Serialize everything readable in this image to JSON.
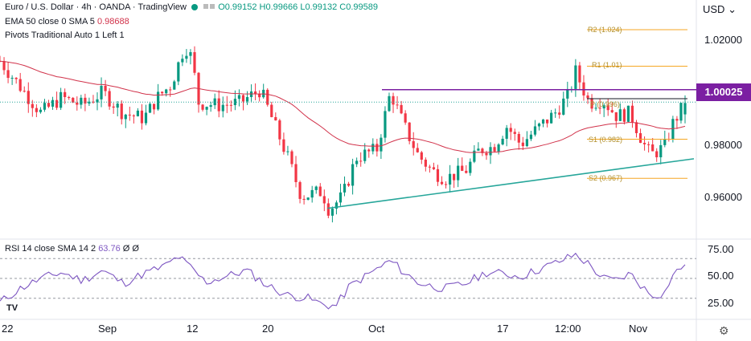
{
  "header": {
    "symbol": "Euro / U.S. Dollar · 4h · OANDA · TradingView",
    "ohlc": "O0.99152 H0.99666 L0.99132 C0.99589",
    "ema_label": "EMA 50 close 0 SMA 5",
    "ema_value": "0.98688",
    "pivots_label": "Pivots Traditional Auto 1 Left 1",
    "currency": "USD",
    "currency_icon": "chevron-down-icon"
  },
  "price_axis": {
    "ticks": [
      "1.02000",
      "0.98000",
      "0.96000"
    ],
    "last_price": "1.00025"
  },
  "rsi": {
    "label": "RSI 14 close SMA 14 2",
    "value": "63.76",
    "ticks": [
      "75.00",
      "50.00",
      "25.00"
    ]
  },
  "time_axis": [
    "22",
    "Sep",
    "12",
    "20",
    "Oct",
    "17",
    "12:00",
    "Nov"
  ],
  "pivots": {
    "R2": "R2 (1.024)",
    "R1": "R1 (1.01)",
    "P": "P (0.996)",
    "S1": "S1 (0.982)",
    "S2": "S2 (0.967)"
  },
  "colors": {
    "up": "#089981",
    "down": "#f23645",
    "ema": "#d1324a",
    "resistance": "#7b1fa2",
    "trendline": "#26a69a",
    "pivot": "#f5a623",
    "rsi": "#7e57c2"
  },
  "chart_data": [
    {
      "type": "candlestick",
      "title": "Euro / U.S. Dollar · 4h",
      "ylim": [
        0.952,
        1.035
      ],
      "horizontal_resistance": 1.001,
      "current_price": 1.00025,
      "ema_50": 0.98688,
      "last_ohlc": {
        "open": 0.99152,
        "high": 0.99666,
        "low": 0.99132,
        "close": 0.99589
      },
      "pivots": {
        "R2": 1.024,
        "R1": 1.01,
        "P": 0.996,
        "S1": 0.982,
        "S2": 0.967
      },
      "trendline": [
        {
          "t": 0.49,
          "price": 0.9555
        },
        {
          "t": 0.97,
          "price": 0.9745
        }
      ],
      "anchors": [
        [
          0.0,
          1.012
        ],
        [
          0.03,
          1.002
        ],
        [
          0.06,
          0.992
        ],
        [
          0.09,
          0.998
        ],
        [
          0.12,
          0.995
        ],
        [
          0.15,
          1.0
        ],
        [
          0.18,
          0.992
        ],
        [
          0.21,
          0.99
        ],
        [
          0.23,
          0.998
        ],
        [
          0.25,
          1.003
        ],
        [
          0.27,
          1.018
        ],
        [
          0.28,
          1.013
        ],
        [
          0.29,
          0.996
        ],
        [
          0.32,
          0.995
        ],
        [
          0.35,
          0.996
        ],
        [
          0.38,
          1.001
        ],
        [
          0.4,
          0.988
        ],
        [
          0.42,
          0.975
        ],
        [
          0.44,
          0.96
        ],
        [
          0.47,
          0.962
        ],
        [
          0.48,
          0.955
        ],
        [
          0.5,
          0.96
        ],
        [
          0.52,
          0.975
        ],
        [
          0.55,
          0.978
        ],
        [
          0.57,
          1.0
        ],
        [
          0.59,
          0.987
        ],
        [
          0.61,
          0.976
        ],
        [
          0.63,
          0.97
        ],
        [
          0.65,
          0.967
        ],
        [
          0.68,
          0.97
        ],
        [
          0.7,
          0.978
        ],
        [
          0.72,
          0.979
        ],
        [
          0.74,
          0.987
        ],
        [
          0.76,
          0.98
        ],
        [
          0.78,
          0.985
        ],
        [
          0.81,
          0.992
        ],
        [
          0.83,
          0.999
        ],
        [
          0.84,
          1.008
        ],
        [
          0.86,
          0.996
        ],
        [
          0.88,
          0.997
        ],
        [
          0.9,
          0.991
        ],
        [
          0.92,
          0.992
        ],
        [
          0.94,
          0.98
        ],
        [
          0.95,
          0.976
        ],
        [
          0.97,
          0.979
        ],
        [
          0.98,
          0.987
        ],
        [
          1.0,
          0.9959
        ]
      ]
    },
    {
      "type": "line",
      "title": "RSI 14 close SMA 14 2",
      "ylim": [
        15,
        80
      ],
      "levels": [
        70,
        50,
        30
      ],
      "last_value": 63.76,
      "anchors": [
        [
          0.0,
          26
        ],
        [
          0.03,
          40
        ],
        [
          0.06,
          50
        ],
        [
          0.09,
          56
        ],
        [
          0.12,
          48
        ],
        [
          0.15,
          58
        ],
        [
          0.18,
          45
        ],
        [
          0.21,
          55
        ],
        [
          0.24,
          62
        ],
        [
          0.26,
          72
        ],
        [
          0.28,
          60
        ],
        [
          0.3,
          46
        ],
        [
          0.33,
          52
        ],
        [
          0.36,
          58
        ],
        [
          0.39,
          43
        ],
        [
          0.42,
          33
        ],
        [
          0.45,
          30
        ],
        [
          0.47,
          24
        ],
        [
          0.49,
          22
        ],
        [
          0.51,
          42
        ],
        [
          0.54,
          55
        ],
        [
          0.57,
          68
        ],
        [
          0.59,
          56
        ],
        [
          0.61,
          46
        ],
        [
          0.63,
          42
        ],
        [
          0.65,
          40
        ],
        [
          0.68,
          45
        ],
        [
          0.71,
          56
        ],
        [
          0.73,
          55
        ],
        [
          0.76,
          52
        ],
        [
          0.79,
          60
        ],
        [
          0.82,
          68
        ],
        [
          0.84,
          74
        ],
        [
          0.86,
          64
        ],
        [
          0.88,
          50
        ],
        [
          0.9,
          48
        ],
        [
          0.92,
          55
        ],
        [
          0.94,
          40
        ],
        [
          0.95,
          33
        ],
        [
          0.97,
          35
        ],
        [
          0.98,
          52
        ],
        [
          1.0,
          63.76
        ]
      ]
    }
  ]
}
